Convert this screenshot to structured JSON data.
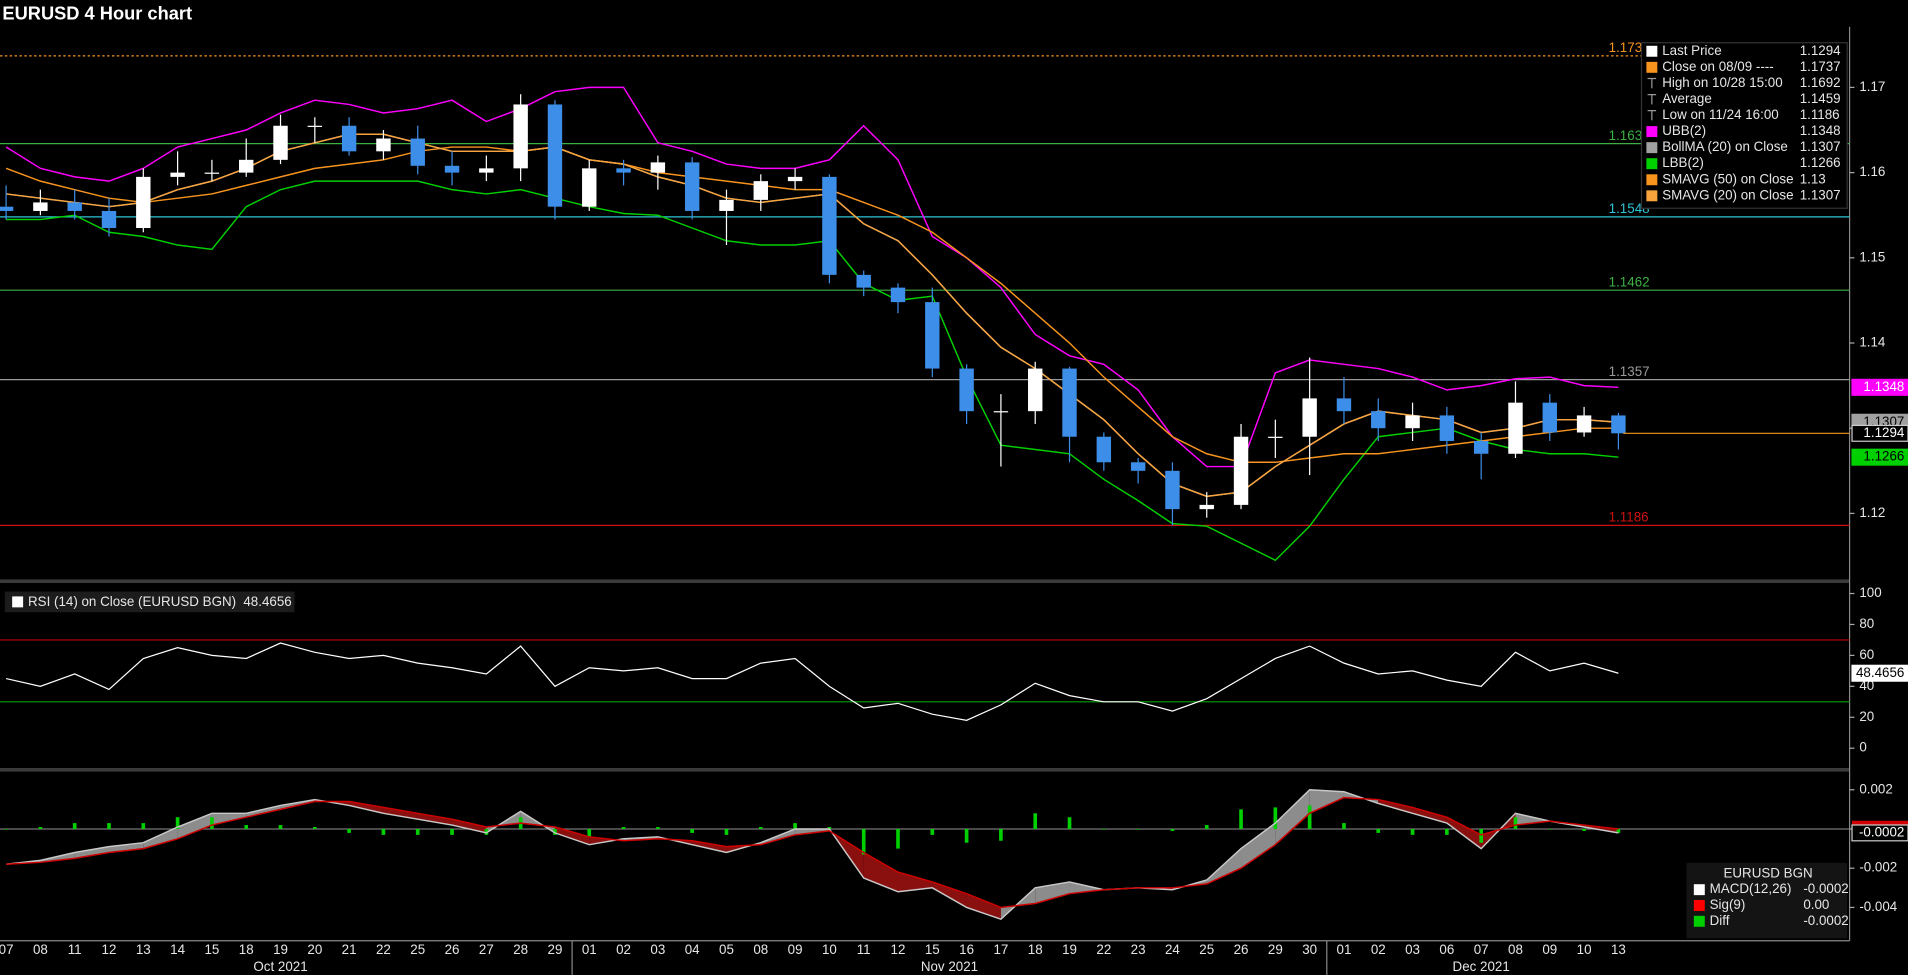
{
  "chart_data": [
    {
      "type": "candlestick",
      "title": "EURUSD 4 Hour chart",
      "categories": [
        "07",
        "08",
        "11",
        "12",
        "13",
        "14",
        "15",
        "18",
        "19",
        "20",
        "21",
        "22",
        "25",
        "26",
        "27",
        "28",
        "29",
        "01",
        "02",
        "03",
        "04",
        "05",
        "08",
        "09",
        "10",
        "11",
        "12",
        "15",
        "16",
        "17",
        "18",
        "19",
        "22",
        "23",
        "24",
        "25",
        "26",
        "29",
        "30",
        "01",
        "02",
        "03",
        "06",
        "07",
        "08",
        "09",
        "10",
        "13"
      ],
      "months": [
        {
          "label": "Oct 2021",
          "start": 0,
          "end": 16
        },
        {
          "label": "Nov 2021",
          "start": 17,
          "end": 38
        },
        {
          "label": "Dec 2021",
          "start": 39,
          "end": 47
        }
      ],
      "open": [
        1.156,
        1.1555,
        1.1565,
        1.1555,
        1.1535,
        1.1595,
        1.16,
        1.16,
        1.1615,
        1.1655,
        1.1655,
        1.1625,
        1.164,
        1.1608,
        1.16,
        1.1605,
        1.168,
        1.156,
        1.1605,
        1.16,
        1.1612,
        1.1555,
        1.1568,
        1.159,
        1.1595,
        1.148,
        1.1465,
        1.1448,
        1.137,
        1.132,
        1.132,
        1.137,
        1.129,
        1.126,
        1.125,
        1.1205,
        1.121,
        1.129,
        1.129,
        1.1335,
        1.132,
        1.13,
        1.1315,
        1.1285,
        1.127,
        1.133,
        1.1295,
        1.1315
      ],
      "high": [
        1.1585,
        1.158,
        1.158,
        1.157,
        1.1605,
        1.1625,
        1.1615,
        1.164,
        1.1668,
        1.1665,
        1.1665,
        1.165,
        1.1655,
        1.1625,
        1.162,
        1.1692,
        1.1685,
        1.1615,
        1.1615,
        1.162,
        1.1618,
        1.158,
        1.1598,
        1.1605,
        1.1598,
        1.1485,
        1.147,
        1.1465,
        1.1375,
        1.134,
        1.1378,
        1.1372,
        1.1295,
        1.1265,
        1.126,
        1.1225,
        1.1305,
        1.131,
        1.1383,
        1.136,
        1.1335,
        1.133,
        1.1325,
        1.1295,
        1.1355,
        1.134,
        1.1325,
        1.1318
      ],
      "low": [
        1.1545,
        1.155,
        1.1545,
        1.1525,
        1.153,
        1.1585,
        1.159,
        1.1595,
        1.161,
        1.1635,
        1.162,
        1.1615,
        1.1598,
        1.1585,
        1.159,
        1.159,
        1.1545,
        1.1555,
        1.1585,
        1.158,
        1.1545,
        1.1515,
        1.1555,
        1.158,
        1.147,
        1.1455,
        1.1435,
        1.136,
        1.1305,
        1.1255,
        1.1305,
        1.126,
        1.125,
        1.1235,
        1.1186,
        1.1195,
        1.1205,
        1.1265,
        1.1245,
        1.1305,
        1.1285,
        1.1285,
        1.127,
        1.124,
        1.1265,
        1.1285,
        1.129,
        1.1275
      ],
      "close": [
        1.1555,
        1.1565,
        1.1555,
        1.1535,
        1.1595,
        1.16,
        1.16,
        1.1615,
        1.1655,
        1.1655,
        1.1625,
        1.164,
        1.1608,
        1.16,
        1.1605,
        1.168,
        1.156,
        1.1605,
        1.16,
        1.1612,
        1.1555,
        1.1568,
        1.159,
        1.1595,
        1.148,
        1.1465,
        1.1448,
        1.137,
        1.132,
        1.132,
        1.137,
        1.129,
        1.126,
        1.125,
        1.1205,
        1.121,
        1.129,
        1.129,
        1.1335,
        1.132,
        1.13,
        1.1315,
        1.1285,
        1.127,
        1.133,
        1.1295,
        1.1315,
        1.1294
      ],
      "up_color": "#ffffff",
      "down_color": "#3d8ee8",
      "last_color": "#f7941d",
      "ylim": [
        1.1124,
        1.1771
      ],
      "yticks": [
        1.12,
        1.13,
        1.14,
        1.15,
        1.16,
        1.17
      ],
      "levels": [
        {
          "value": 1.1737,
          "color": "#f7941d",
          "style": "dotted"
        },
        {
          "value": 1.1634,
          "color": "#3cb043",
          "style": "solid"
        },
        {
          "value": 1.1548,
          "color": "#2ec4d6",
          "style": "solid"
        },
        {
          "value": 1.1462,
          "color": "#3cb043",
          "style": "solid"
        },
        {
          "value": 1.1357,
          "color": "#9a9a9a",
          "style": "solid"
        },
        {
          "value": 1.1186,
          "color": "#d01010",
          "style": "solid"
        }
      ],
      "stats": [
        {
          "name": "Last Price",
          "color": "#ffffff"
        },
        {
          "name": "Close on 08/09 ----",
          "color": "#f7941d",
          "value": 1.1737
        },
        {
          "name": "High on 10/28 15:00",
          "value": 1.1692
        },
        {
          "name": "Average",
          "value": 1.1459
        },
        {
          "name": "Low on 11/24 16:00",
          "value": 1.1186
        }
      ],
      "series": [
        {
          "name": "UBB(2)",
          "color": "#ff00ff",
          "values": [
            1.163,
            1.1605,
            1.1595,
            1.159,
            1.1605,
            1.163,
            1.164,
            1.165,
            1.167,
            1.1685,
            1.168,
            1.167,
            1.1675,
            1.1685,
            1.166,
            1.1675,
            1.1695,
            1.17,
            1.17,
            1.1635,
            1.1625,
            1.161,
            1.1605,
            1.1605,
            1.1615,
            1.1655,
            1.1615,
            1.1525,
            1.15,
            1.1465,
            1.141,
            1.1385,
            1.1375,
            1.1345,
            1.129,
            1.1255,
            1.1255,
            1.1365,
            1.138,
            1.1375,
            1.137,
            1.136,
            1.1345,
            1.135,
            1.1358,
            1.136,
            1.135,
            1.1348
          ]
        },
        {
          "name": "BollMA (20)  on Close",
          "color": "#a0a0a0",
          "values": [
            1.1575,
            1.157,
            1.1565,
            1.156,
            1.1565,
            1.158,
            1.159,
            1.1605,
            1.1625,
            1.1635,
            1.1645,
            1.1645,
            1.1635,
            1.1625,
            1.1625,
            1.1625,
            1.163,
            1.1615,
            1.161,
            1.1595,
            1.1585,
            1.157,
            1.1565,
            1.157,
            1.1575,
            1.154,
            1.152,
            1.148,
            1.1435,
            1.1395,
            1.137,
            1.134,
            1.131,
            1.127,
            1.1235,
            1.122,
            1.1225,
            1.1255,
            1.128,
            1.1305,
            1.132,
            1.1315,
            1.131,
            1.1295,
            1.13,
            1.131,
            1.131,
            1.1307
          ]
        },
        {
          "name": "LBB(2)",
          "color": "#00d000",
          "values": [
            1.1545,
            1.1545,
            1.155,
            1.153,
            1.1525,
            1.1515,
            1.151,
            1.156,
            1.158,
            1.159,
            1.159,
            1.159,
            1.159,
            1.158,
            1.1575,
            1.158,
            1.157,
            1.156,
            1.1552,
            1.155,
            1.1535,
            1.152,
            1.1515,
            1.1515,
            1.152,
            1.147,
            1.145,
            1.1455,
            1.136,
            1.128,
            1.1275,
            1.127,
            1.124,
            1.1215,
            1.1188,
            1.1185,
            1.1165,
            1.1145,
            1.1185,
            1.124,
            1.129,
            1.1295,
            1.13,
            1.1285,
            1.1275,
            1.127,
            1.127,
            1.1266
          ]
        },
        {
          "name": "SMAVG (50)  on Close",
          "color": "#f7941d",
          "values": [
            1.1605,
            1.159,
            1.158,
            1.157,
            1.1565,
            1.157,
            1.1575,
            1.1585,
            1.1595,
            1.1605,
            1.161,
            1.1615,
            1.1625,
            1.163,
            1.163,
            1.1625,
            1.163,
            1.1615,
            1.161,
            1.16,
            1.1595,
            1.159,
            1.1585,
            1.158,
            1.158,
            1.1565,
            1.155,
            1.153,
            1.15,
            1.147,
            1.1435,
            1.14,
            1.136,
            1.1325,
            1.129,
            1.127,
            1.126,
            1.126,
            1.1265,
            1.127,
            1.127,
            1.1275,
            1.128,
            1.1285,
            1.129,
            1.1295,
            1.13,
            1.13
          ]
        },
        {
          "name": "SMAVG (20)  on Close",
          "color": "#f9a33c",
          "values": [
            1.1575,
            1.157,
            1.1565,
            1.156,
            1.1565,
            1.158,
            1.159,
            1.1605,
            1.1625,
            1.1635,
            1.1645,
            1.1645,
            1.1635,
            1.1625,
            1.1625,
            1.1625,
            1.163,
            1.1615,
            1.161,
            1.1595,
            1.1585,
            1.157,
            1.1565,
            1.157,
            1.1575,
            1.154,
            1.152,
            1.148,
            1.1435,
            1.1395,
            1.137,
            1.134,
            1.131,
            1.127,
            1.1235,
            1.122,
            1.1225,
            1.1255,
            1.128,
            1.1305,
            1.132,
            1.1315,
            1.131,
            1.1295,
            1.13,
            1.131,
            1.131,
            1.1307
          ]
        }
      ]
    },
    {
      "type": "line",
      "name": "RSI (14)  on Close (EURUSD BGN)",
      "color": "#ffffff",
      "values": [
        45,
        40,
        48,
        38,
        58,
        65,
        60,
        58,
        68,
        62,
        58,
        60,
        55,
        52,
        48,
        66,
        40,
        52,
        50,
        52,
        45,
        45,
        55,
        58,
        40,
        26,
        29,
        22,
        18,
        28,
        42,
        34,
        30,
        30,
        24,
        32,
        45,
        58,
        66,
        55,
        48,
        50,
        44,
        40,
        62,
        50,
        55,
        48.4656
      ],
      "ylim": [
        -12,
        106
      ],
      "yticks": [
        0,
        20,
        40,
        60,
        80,
        100
      ],
      "levels": [
        {
          "value": 70,
          "color": "#c00000"
        },
        {
          "value": 30,
          "color": "#00a000"
        }
      ]
    },
    {
      "type": "macd",
      "title": "EURUSD BGN",
      "ylim": [
        -0.0057,
        0.0028
      ],
      "yticks": [
        -0.004,
        -0.002,
        0,
        0.002
      ],
      "series": [
        {
          "name": "MACD(12,26)",
          "color": "#c8c8c8",
          "values": [
            -0.0018,
            -0.0016,
            -0.0012,
            -0.0009,
            -0.0007,
            0.0001,
            0.0008,
            0.0008,
            0.0012,
            0.0015,
            0.0012,
            0.0008,
            0.0005,
            0.0002,
            -0.0002,
            0.0009,
            -0.0002,
            -0.0008,
            -0.0005,
            -0.0004,
            -0.0008,
            -0.0012,
            -0.0007,
            0,
            0,
            -0.0025,
            -0.0032,
            -0.003,
            -0.004,
            -0.0046,
            -0.003,
            -0.0027,
            -0.0031,
            -0.003,
            -0.0031,
            -0.0026,
            -0.001,
            0.0003,
            0.002,
            0.0019,
            0.0013,
            0.0008,
            0.0003,
            -0.001,
            0.0008,
            0.0004,
            0.0001,
            -0.0002
          ]
        },
        {
          "name": "Sig(9)",
          "color": "#d00000",
          "value_label": "0.00",
          "values": [
            -0.0018,
            -0.0017,
            -0.0015,
            -0.0012,
            -0.001,
            -0.0005,
            0.0002,
            0.0006,
            0.001,
            0.0014,
            0.0014,
            0.0011,
            0.0008,
            0.0005,
            0.0001,
            0.0003,
            0.0001,
            -0.0004,
            -0.0006,
            -0.0005,
            -0.0006,
            -0.0009,
            -0.0008,
            -0.0003,
            -0.0001,
            -0.0012,
            -0.0022,
            -0.0027,
            -0.0033,
            -0.004,
            -0.0038,
            -0.0033,
            -0.0031,
            -0.003,
            -0.003,
            -0.0028,
            -0.002,
            -0.0008,
            0.0008,
            0.0016,
            0.0015,
            0.0011,
            0.0006,
            -0.0003,
            0.0002,
            0.0004,
            0.0002,
            0
          ]
        },
        {
          "name": "Diff",
          "color": "#00d000",
          "values": [
            0,
            0.0001,
            0.0003,
            0.0003,
            0.0003,
            0.0006,
            0.0006,
            0.0002,
            0.0002,
            0.0001,
            -0.0002,
            -0.0003,
            -0.0003,
            -0.0003,
            -0.0003,
            0.0006,
            -0.0003,
            -0.0004,
            0.0001,
            0.0001,
            -0.0002,
            -0.0003,
            0.0001,
            0.0003,
            0.0001,
            -0.0013,
            -0.001,
            -0.0003,
            -0.0007,
            -0.0006,
            0.0008,
            0.0006,
            0,
            0,
            -0.0001,
            0.0002,
            0.001,
            0.0011,
            0.0012,
            0.0003,
            -0.0002,
            -0.0003,
            -0.0003,
            -0.0007,
            0.0006,
            0,
            -0.0001,
            -0.0002
          ]
        }
      ]
    }
  ]
}
